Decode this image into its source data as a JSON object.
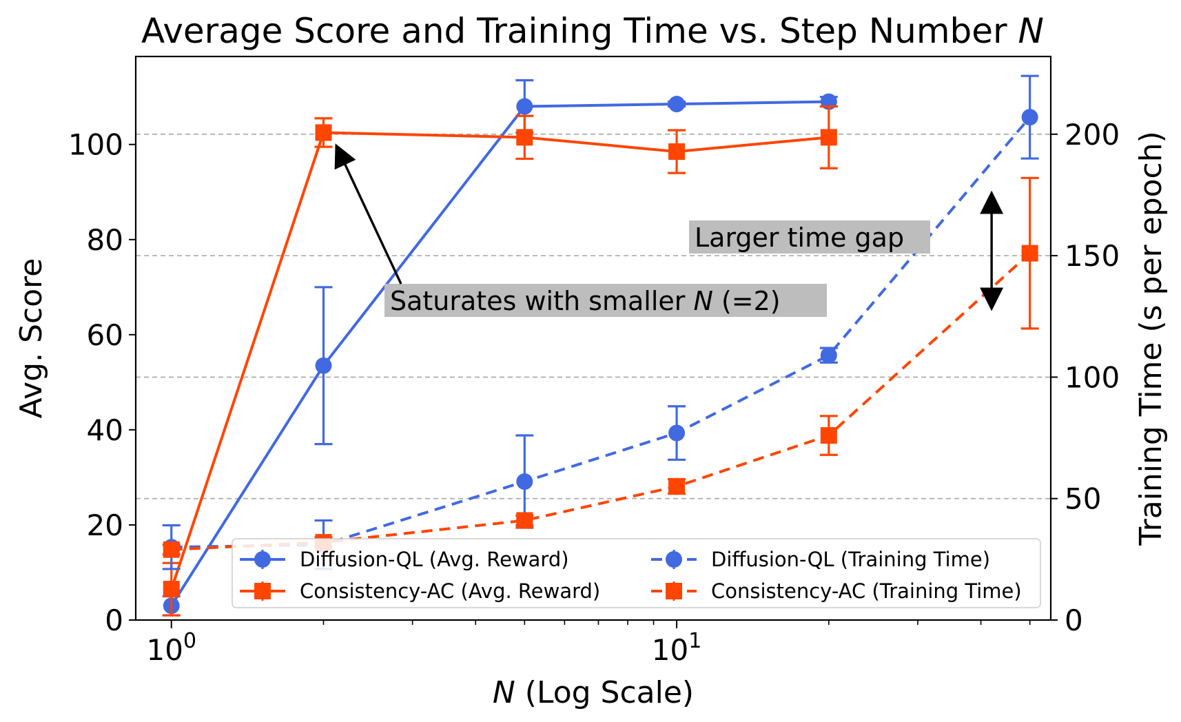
{
  "chart_data": {
    "type": "line",
    "title": "Average Score and Training Time vs. Step Number",
    "title_italic": "N",
    "xlabel_italic": "N",
    "xlabel": " (Log Scale)",
    "ylabel_left": "Avg. Score",
    "ylabel_right": "Training Time (s per epoch)",
    "x_scale": "log",
    "x": [
      1,
      2,
      5,
      10,
      20,
      50
    ],
    "xlim": [
      0.85,
      55
    ],
    "x_major_ticks": [
      {
        "value": 1,
        "base": "10",
        "exp": "0"
      },
      {
        "value": 10,
        "base": "10",
        "exp": "1"
      }
    ],
    "x_minor_ticks": [
      2,
      3,
      4,
      5,
      6,
      7,
      8,
      9,
      20,
      30,
      40,
      50
    ],
    "ylim_left": [
      0,
      118.5
    ],
    "yticks_left": [
      "0",
      "20",
      "40",
      "60",
      "80",
      "100"
    ],
    "ylim_right": [
      0,
      232
    ],
    "yticks_right": [
      "0",
      "50",
      "100",
      "150",
      "200"
    ],
    "grid": "horizontal dashed at right-axis ticks",
    "legend_placement": "lower right",
    "series": [
      {
        "name": "Diffusion-QL (Avg. Reward)",
        "axis": "left",
        "color": "#4169e1",
        "line": "solid",
        "marker": "circle",
        "x": [
          1,
          2,
          5,
          10,
          20
        ],
        "y": [
          3,
          53.5,
          108,
          108.5,
          109
        ],
        "err": [
          2,
          16.5,
          5.5,
          0.5,
          1
        ]
      },
      {
        "name": "Consistency-AC (Avg. Reward)",
        "axis": "left",
        "color": "#ff4500",
        "line": "solid",
        "marker": "square",
        "x": [
          1,
          2,
          5,
          10,
          20
        ],
        "y": [
          6.5,
          102.5,
          101.5,
          98.5,
          101.5
        ],
        "err": [
          5.5,
          3,
          4.5,
          4.5,
          6.5
        ]
      },
      {
        "name": "Diffusion-QL (Training Time)",
        "axis": "right",
        "color": "#4169e1",
        "line": "dashed",
        "marker": "circle",
        "x": [
          1,
          2,
          5,
          10,
          20,
          50
        ],
        "y": [
          30,
          31,
          57,
          77,
          109,
          207
        ],
        "err": [
          9,
          10,
          19,
          11,
          3,
          17
        ]
      },
      {
        "name": "Consistency-AC (Training Time)",
        "axis": "right",
        "color": "#ff4500",
        "line": "dashed",
        "marker": "square",
        "x": [
          1,
          2,
          5,
          10,
          20,
          50
        ],
        "y": [
          29,
          32,
          41,
          55,
          76,
          151
        ],
        "err": [
          2,
          2,
          2,
          3,
          8,
          31
        ]
      }
    ],
    "annotations": [
      {
        "text_before": "Saturates with smaller ",
        "text_italic": "N",
        "text_after": " (=2)",
        "arrow_to": {
          "x": 2,
          "y": 102.5,
          "axis": "left"
        }
      },
      {
        "text_before": "Larger time gap",
        "text_italic": "",
        "text_after": "",
        "double_arrow_x": 42,
        "from_right": 176,
        "to_right": 128
      }
    ]
  }
}
